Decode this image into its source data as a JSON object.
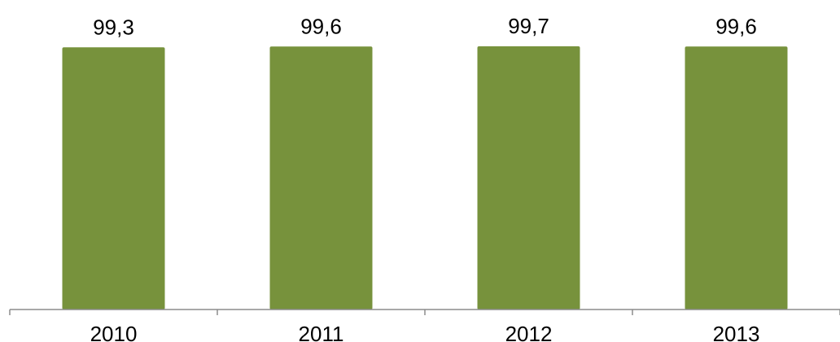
{
  "chart_data": {
    "type": "bar",
    "categories": [
      "2010",
      "2011",
      "2012",
      "2013"
    ],
    "values": [
      99.3,
      99.6,
      99.7,
      99.6
    ],
    "data_labels": [
      "99,3",
      "99,6",
      "99,7",
      "99,6"
    ],
    "title": "",
    "xlabel": "",
    "ylabel": "",
    "ylim": [
      0,
      100
    ],
    "grid": false,
    "legend": "none",
    "bar_color": "#77923c",
    "axis_color": "#8c8c8c"
  }
}
